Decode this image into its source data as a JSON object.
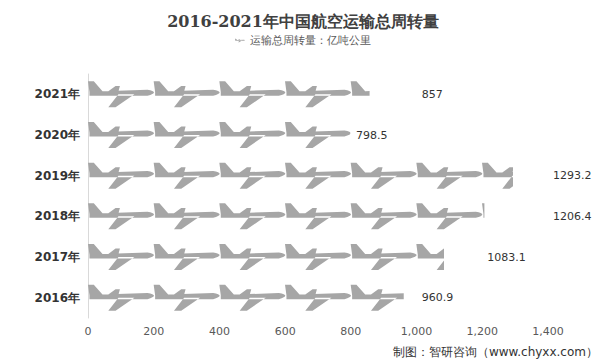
{
  "chart_data": {
    "type": "pictorialBar",
    "title": "2016-2021年中国航空运输总周转量",
    "orientation": "horizontal",
    "categories": [
      "2016年",
      "2017年",
      "2018年",
      "2019年",
      "2020年",
      "2021年"
    ],
    "series": [
      {
        "name": "运输总周转量：亿吨公里",
        "color": "#a6a6a6",
        "values": [
          960.9,
          1083.1,
          1206.4,
          1293.2,
          798.5,
          857
        ]
      }
    ],
    "xlim": [
      0,
      1400
    ],
    "xticks": [
      0,
      200,
      400,
      600,
      800,
      1000,
      1200,
      1400
    ],
    "grid": false,
    "legend": "top",
    "data_labels": true,
    "annotations": [
      "制图：智研咨询（www.chyxx.com）"
    ]
  }
}
